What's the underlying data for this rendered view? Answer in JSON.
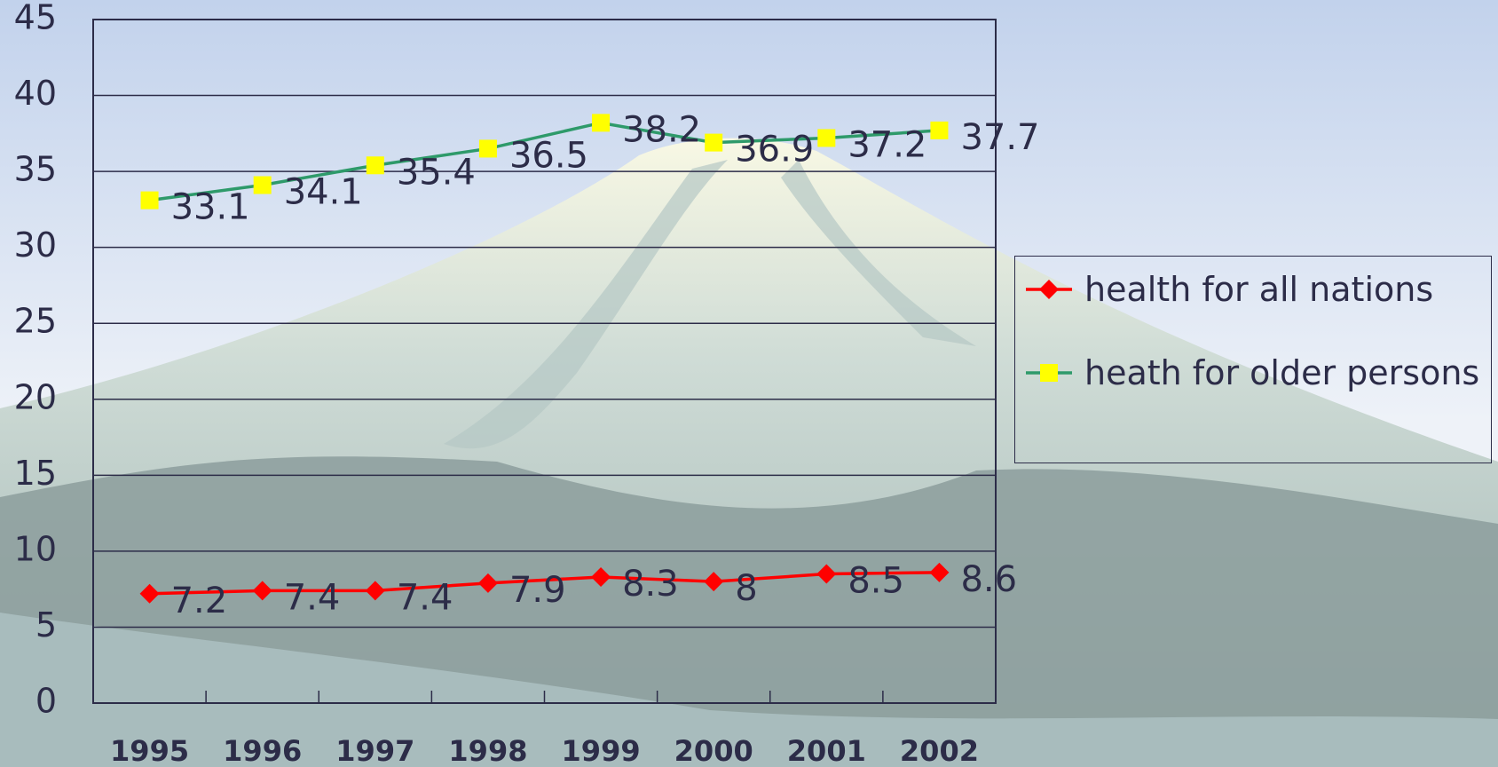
{
  "chart_data": {
    "type": "line",
    "categories": [
      "1995",
      "1996",
      "1997",
      "1998",
      "1999",
      "2000",
      "2001",
      "2002"
    ],
    "series": [
      {
        "name": "health for all nations",
        "color": "#ff0000",
        "marker": "diamond",
        "marker_color": "#ff0000",
        "values": [
          7.2,
          7.4,
          7.4,
          7.9,
          8.3,
          8,
          8.5,
          8.6
        ]
      },
      {
        "name": "heath for older persons",
        "color": "#2e9a6a",
        "marker": "square",
        "marker_color": "#ffff00",
        "values": [
          33.1,
          34.1,
          35.4,
          36.5,
          38.2,
          36.9,
          37.2,
          37.7
        ]
      }
    ],
    "ylim": [
      0,
      45
    ],
    "yticks": [
      0,
      5,
      10,
      15,
      20,
      25,
      30,
      35,
      40,
      45
    ],
    "grid": true,
    "legend": "right"
  }
}
